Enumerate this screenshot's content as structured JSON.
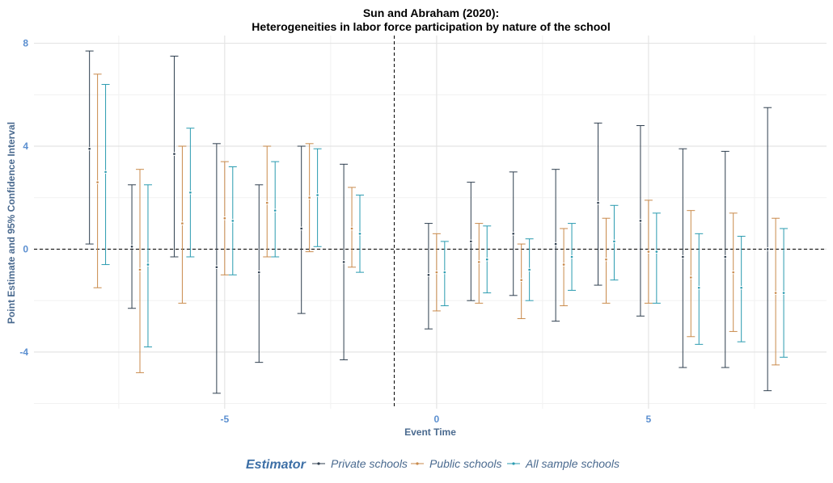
{
  "chart_data": {
    "type": "errorbar",
    "title": "Sun and Abraham (2020):",
    "subtitle": "Heterogeneities in labor force participation by nature of the school",
    "xlabel": "Event Time",
    "ylabel": "Point Estimate and 95% Confidence Interval",
    "xlim": [
      -9.5,
      9.2
    ],
    "ylim": [
      -6.2,
      8.3
    ],
    "x_ticks": [
      -5,
      0,
      5
    ],
    "x_tick_labels": [
      "-5",
      "0",
      "5"
    ],
    "y_ticks": [
      -4,
      0,
      4,
      8
    ],
    "y_tick_labels": [
      "-4",
      "0",
      "4",
      "8"
    ],
    "reference_lines": {
      "x": -1,
      "y": 0,
      "style": "dashed"
    },
    "grid": true,
    "legend": {
      "title": "Estimator",
      "position": "bottom"
    },
    "series": [
      {
        "name": "Private schools",
        "color": "#2f3f4f",
        "x": [
          -8,
          -7,
          -6,
          -5,
          -4,
          -3,
          -2,
          0,
          1,
          2,
          3,
          4,
          5,
          6,
          7,
          8
        ],
        "estimate": [
          3.9,
          0.1,
          3.7,
          -0.7,
          -0.9,
          0.8,
          -0.5,
          -1.0,
          0.3,
          0.6,
          0.2,
          1.8,
          1.1,
          -0.3,
          -0.3,
          0.0
        ],
        "lower": [
          0.2,
          -2.3,
          -0.3,
          -5.6,
          -4.4,
          -2.5,
          -4.3,
          -3.1,
          -2.0,
          -1.8,
          -2.8,
          -1.4,
          -2.6,
          -4.6,
          -4.6,
          -5.5
        ],
        "upper": [
          7.7,
          2.5,
          7.5,
          4.1,
          2.5,
          4.0,
          3.3,
          1.0,
          2.6,
          3.0,
          3.1,
          4.9,
          4.8,
          3.9,
          3.8,
          5.5
        ]
      },
      {
        "name": "Public schools",
        "color": "#c98a4b",
        "x": [
          -8,
          -7,
          -6,
          -5,
          -4,
          -3,
          -2,
          0,
          1,
          2,
          3,
          4,
          5,
          6,
          7,
          8
        ],
        "estimate": [
          2.6,
          -0.8,
          1.0,
          1.2,
          1.8,
          2.0,
          0.8,
          -0.9,
          -0.5,
          -1.2,
          -0.6,
          -0.4,
          -0.1,
          -1.1,
          -0.9,
          -1.7
        ],
        "lower": [
          -1.5,
          -4.8,
          -2.1,
          -1.0,
          -0.3,
          -0.1,
          -0.7,
          -2.4,
          -2.1,
          -2.7,
          -2.2,
          -2.1,
          -2.1,
          -3.4,
          -3.2,
          -4.5
        ],
        "upper": [
          6.8,
          3.1,
          4.0,
          3.4,
          4.0,
          4.1,
          2.4,
          0.6,
          1.0,
          0.2,
          0.8,
          1.2,
          1.9,
          1.5,
          1.4,
          1.2
        ]
      },
      {
        "name": "All sample schools",
        "color": "#2a9bb0",
        "x": [
          -8,
          -7,
          -6,
          -5,
          -4,
          -3,
          -2,
          0,
          1,
          2,
          3,
          4,
          5,
          6,
          7,
          8
        ],
        "estimate": [
          3.0,
          -0.6,
          2.2,
          1.1,
          1.5,
          2.1,
          0.6,
          -0.9,
          -0.4,
          -0.8,
          -0.3,
          0.3,
          -0.1,
          -1.5,
          -1.5,
          -1.7
        ],
        "lower": [
          -0.6,
          -3.8,
          -0.3,
          -1.0,
          -0.3,
          0.1,
          -0.9,
          -2.2,
          -1.7,
          -2.0,
          -1.6,
          -1.2,
          -2.1,
          -3.7,
          -3.6,
          -4.2
        ],
        "upper": [
          6.4,
          2.5,
          4.7,
          3.2,
          3.4,
          3.9,
          2.1,
          0.3,
          0.9,
          0.4,
          1.0,
          1.7,
          1.4,
          0.6,
          0.5,
          0.8
        ]
      }
    ]
  }
}
